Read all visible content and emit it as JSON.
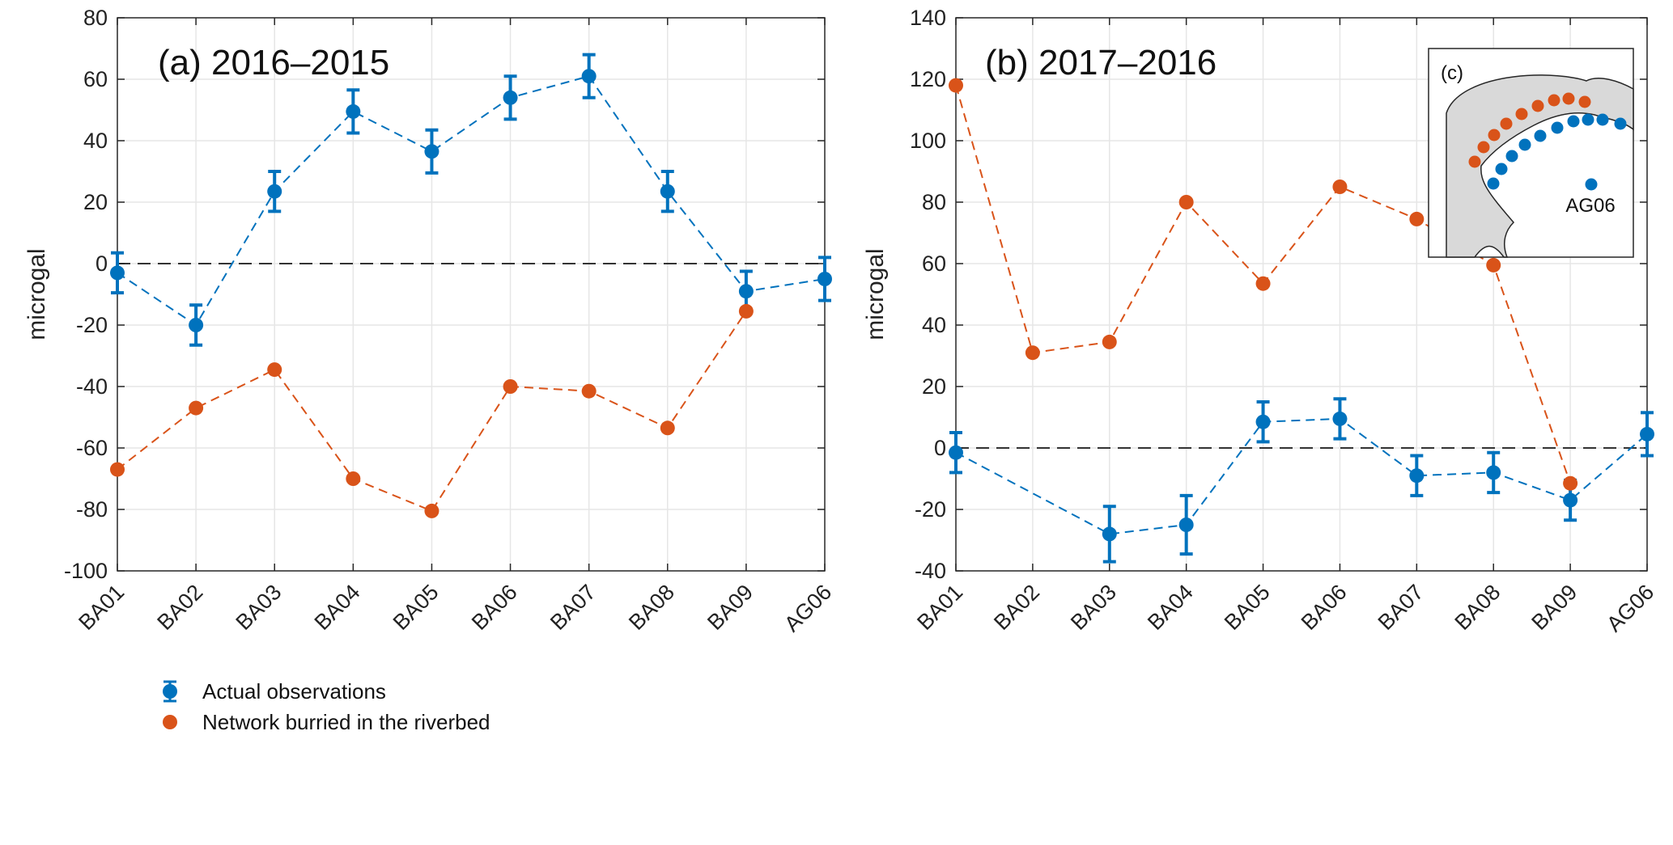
{
  "chart_data": [
    {
      "type": "line",
      "title": "(a) 2016–2015",
      "ylabel": "microgal",
      "ylim": [
        -100,
        80
      ],
      "yticks": [
        -100,
        -80,
        -60,
        -40,
        -20,
        0,
        20,
        40,
        60,
        80
      ],
      "categories": [
        "BA01",
        "BA02",
        "BA03",
        "BA04",
        "BA05",
        "BA06",
        "BA07",
        "BA08",
        "BA09",
        "AG06"
      ],
      "grid": true,
      "zero_line": true,
      "legend": {
        "placement": "bottom-left",
        "entries": [
          "Actual observations",
          "Network burried in the riverbed"
        ]
      },
      "series": [
        {
          "name": "Actual observations",
          "color": "#0072BD",
          "error_bars": true,
          "values": [
            -3,
            -20,
            23.5,
            49.5,
            36.5,
            54,
            61,
            23.5,
            -9,
            -5
          ],
          "errors": [
            6.5,
            6.5,
            6.5,
            7,
            7,
            7,
            7,
            6.5,
            6.5,
            7
          ]
        },
        {
          "name": "Network burried in the riverbed",
          "color": "#D95319",
          "error_bars": false,
          "values": [
            -67,
            -47,
            -34.5,
            -70,
            -80.5,
            -40,
            -41.5,
            -53.5,
            -15.5,
            null
          ]
        }
      ]
    },
    {
      "type": "line",
      "title": "(b) 2017–2016",
      "ylabel": "microgal",
      "ylim": [
        -40,
        140
      ],
      "yticks": [
        -40,
        -20,
        0,
        20,
        40,
        60,
        80,
        100,
        120,
        140
      ],
      "categories": [
        "BA01",
        "BA02",
        "BA03",
        "BA04",
        "BA05",
        "BA06",
        "BA07",
        "BA08",
        "BA09",
        "AG06"
      ],
      "grid": true,
      "zero_line": true,
      "series": [
        {
          "name": "Actual observations",
          "color": "#0072BD",
          "error_bars": true,
          "values": [
            -1.5,
            null,
            -28,
            -25,
            8.5,
            9.5,
            -9,
            -8,
            -17,
            4.5
          ],
          "errors": [
            6.5,
            null,
            9,
            9.5,
            6.5,
            6.5,
            6.5,
            6.5,
            6.5,
            7
          ]
        },
        {
          "name": "Network burried in the riverbed",
          "color": "#D95319",
          "error_bars": false,
          "values": [
            118,
            31,
            34.5,
            80,
            53.5,
            85,
            74.5,
            59.5,
            -11.5,
            null
          ]
        }
      ]
    }
  ],
  "inset": {
    "label": "(c)",
    "station_label": "AG06",
    "fill_color": "#d9d9d9"
  }
}
